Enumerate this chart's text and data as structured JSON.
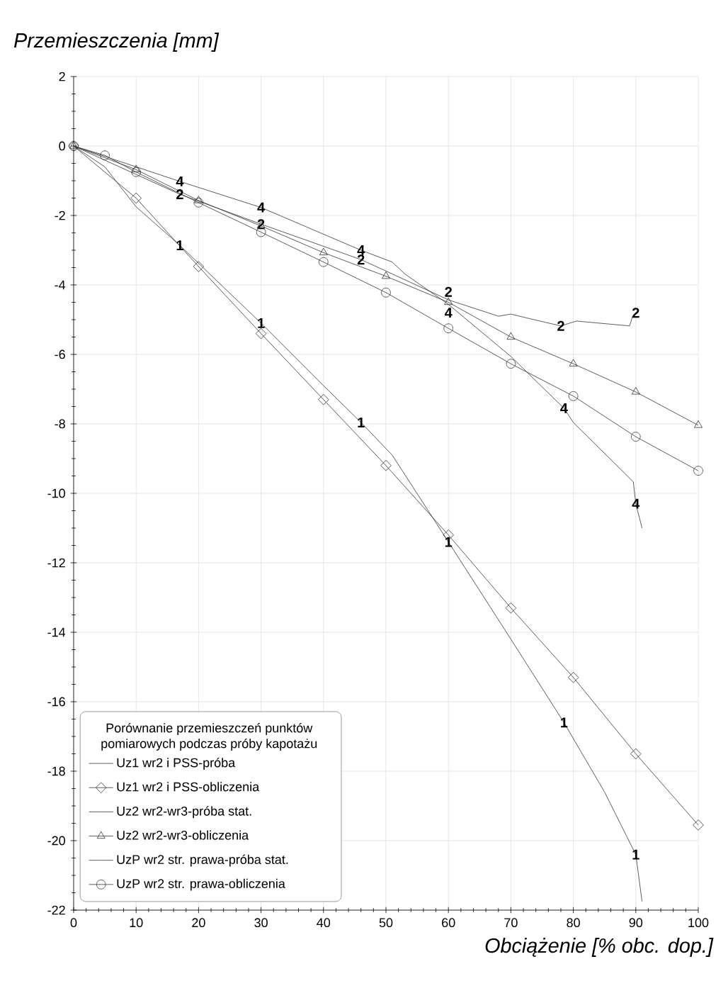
{
  "chart_data": {
    "type": "line",
    "xlabel": "Obciążenie [% obc. dop.]",
    "ylabel": "Przemieszczenia [mm]",
    "legend_title": "Porównanie przemieszczeń punktów pomiarowych podczas próby kapotażu",
    "xlim": [
      0,
      100
    ],
    "ylim": [
      -22,
      2
    ],
    "xticks": [
      0,
      10,
      20,
      30,
      40,
      50,
      60,
      70,
      80,
      90,
      100
    ],
    "yticks": [
      -22,
      -20,
      -18,
      -16,
      -14,
      -12,
      -10,
      -8,
      -6,
      -4,
      -2,
      0,
      2
    ],
    "grid": true,
    "legend": "bottom left",
    "line_style": "solid",
    "series": [
      {
        "name": "Uz1 wr2 i PSS-próba",
        "color": "#333333",
        "marker": "none",
        "x": [
          0,
          5,
          10,
          17,
          30,
          40,
          46,
          51,
          60,
          70,
          78.5,
          85,
          90,
          91
        ],
        "values": [
          0,
          -0.6,
          -1.75,
          -2.86,
          -5.1,
          -6.9,
          -7.96,
          -8.9,
          -11.4,
          -14.2,
          -16.6,
          -18.6,
          -20.4,
          -21.75
        ]
      },
      {
        "name": "Uz1 wr2 i PSS-obliczenia",
        "color": "#333333",
        "marker": "diamond",
        "x": [
          0,
          10,
          20,
          30,
          40,
          50,
          60,
          70,
          80,
          90,
          100
        ],
        "values": [
          0,
          -1.5,
          -3.47,
          -5.4,
          -7.3,
          -9.2,
          -11.2,
          -13.3,
          -15.3,
          -17.5,
          -19.55
        ]
      },
      {
        "name": "Uz2 wr2-wr3-próba stat.",
        "color": "#333333",
        "marker": "none",
        "x": [
          0,
          17,
          30,
          46,
          50,
          60,
          68,
          70,
          73,
          78,
          80.5,
          89,
          89.5
        ],
        "values": [
          0,
          -1.39,
          -2.25,
          -3.27,
          -3.6,
          -4.43,
          -4.9,
          -4.84,
          -4.97,
          -5.18,
          -5.04,
          -5.18,
          -4.9
        ]
      },
      {
        "name": "Uz2 wr2-wr3-obliczenia",
        "color": "#333333",
        "marker": "triangle",
        "x": [
          0,
          10,
          20,
          30,
          40,
          50,
          60,
          70,
          80,
          90,
          100
        ],
        "values": [
          0,
          -0.68,
          -1.57,
          -2.3,
          -3.07,
          -3.75,
          -4.5,
          -5.5,
          -6.27,
          -7.08,
          -8.04
        ]
      },
      {
        "name": "UzP wr2 str. prawa-próba stat.",
        "color": "#333333",
        "marker": "none",
        "x": [
          0,
          17,
          30,
          46,
          51,
          53,
          60,
          70,
          78.5,
          80,
          89.6,
          90,
          91
        ],
        "values": [
          0,
          -1.02,
          -1.77,
          -3.0,
          -3.34,
          -3.68,
          -4.56,
          -6.06,
          -7.55,
          -7.96,
          -9.67,
          -10.3,
          -11.0
        ]
      },
      {
        "name": "UzP wr2 str. prawa-obliczenia",
        "color": "#333333",
        "marker": "circle",
        "x": [
          0,
          5,
          10,
          20,
          30,
          40,
          50,
          60,
          70,
          80,
          90,
          100
        ],
        "values": [
          0,
          -0.27,
          -0.75,
          -1.63,
          -2.48,
          -3.34,
          -4.22,
          -5.25,
          -6.27,
          -7.2,
          -8.37,
          -9.35
        ]
      }
    ],
    "annotations": [
      {
        "text": "1",
        "x": 17,
        "y": -2.86
      },
      {
        "text": "1",
        "x": 30,
        "y": -5.1
      },
      {
        "text": "1",
        "x": 46,
        "y": -7.96
      },
      {
        "text": "1",
        "x": 60,
        "y": -11.4
      },
      {
        "text": "1",
        "x": 78.5,
        "y": -16.6
      },
      {
        "text": "1",
        "x": 90,
        "y": -20.4
      },
      {
        "text": "2",
        "x": 17,
        "y": -1.39
      },
      {
        "text": "2",
        "x": 30,
        "y": -2.25
      },
      {
        "text": "2",
        "x": 46,
        "y": -3.27
      },
      {
        "text": "2",
        "x": 60,
        "y": -4.2
      },
      {
        "text": "2",
        "x": 78,
        "y": -5.18
      },
      {
        "text": "2",
        "x": 90,
        "y": -4.8
      },
      {
        "text": "4",
        "x": 17,
        "y": -1.02
      },
      {
        "text": "4",
        "x": 30,
        "y": -1.77
      },
      {
        "text": "4",
        "x": 46,
        "y": -3.0
      },
      {
        "text": "4",
        "x": 60,
        "y": -4.8
      },
      {
        "text": "4",
        "x": 78.5,
        "y": -7.55
      },
      {
        "text": "4",
        "x": 90,
        "y": -10.3
      }
    ]
  }
}
